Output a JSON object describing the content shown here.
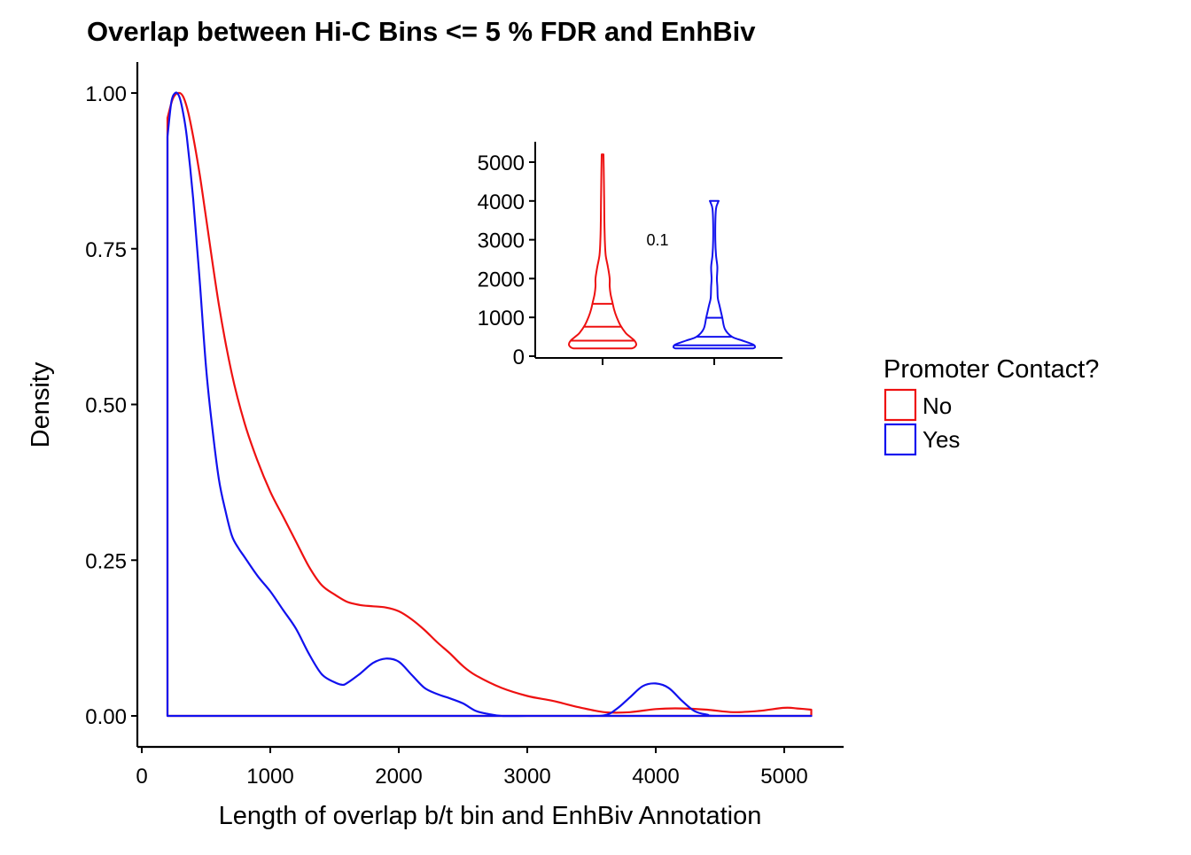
{
  "chart_data": [
    {
      "type": "density",
      "title": "Overlap between Hi-C Bins <= 5 % FDR and EnhBiv",
      "xlabel": "Length of overlap b/t bin and EnhBiv Annotation",
      "ylabel": "Density",
      "xlim": [
        -20,
        5450
      ],
      "ylim": [
        -0.05,
        1.05
      ],
      "xticks": [
        0,
        1000,
        2000,
        3000,
        4000,
        5000
      ],
      "xtick_labels": [
        "0",
        "1000",
        "2000",
        "3000",
        "4000",
        "5000"
      ],
      "yticks": [
        0,
        0.25,
        0.5,
        0.75,
        1.0
      ],
      "ytick_labels": [
        "0.00",
        "0.25",
        "0.50",
        "0.75",
        "1.00"
      ],
      "grid": false,
      "legend": {
        "title": "Promoter Contact?",
        "position": "right",
        "entries": [
          "No",
          "Yes"
        ]
      },
      "series": [
        {
          "name": "No",
          "color": "#ee1111",
          "x": [
            200,
            240,
            280,
            320,
            360,
            400,
            450,
            500,
            600,
            700,
            800,
            900,
            1000,
            1100,
            1200,
            1300,
            1400,
            1500,
            1600,
            1700,
            1800,
            1900,
            2000,
            2100,
            2200,
            2300,
            2400,
            2500,
            2600,
            2800,
            3000,
            3200,
            3400,
            3600,
            3800,
            4000,
            4200,
            4400,
            4600,
            4800,
            5000,
            5100,
            5210
          ],
          "y": [
            0.96,
            0.99,
            1.0,
            0.995,
            0.97,
            0.93,
            0.87,
            0.8,
            0.66,
            0.55,
            0.47,
            0.41,
            0.36,
            0.32,
            0.28,
            0.24,
            0.21,
            0.195,
            0.183,
            0.178,
            0.176,
            0.174,
            0.168,
            0.155,
            0.138,
            0.118,
            0.1,
            0.08,
            0.065,
            0.045,
            0.032,
            0.024,
            0.014,
            0.006,
            0.006,
            0.011,
            0.012,
            0.01,
            0.006,
            0.008,
            0.013,
            0.012,
            0.01
          ]
        },
        {
          "name": "Yes",
          "color": "#1111ee",
          "x": [
            200,
            230,
            260,
            290,
            320,
            350,
            400,
            450,
            500,
            550,
            600,
            650,
            700,
            750,
            800,
            900,
            1000,
            1100,
            1200,
            1300,
            1400,
            1500,
            1560,
            1600,
            1700,
            1800,
            1900,
            2000,
            2100,
            2200,
            2300,
            2400,
            2500,
            2600,
            2700,
            2800,
            3000,
            3200,
            3400,
            3600,
            3700,
            3800,
            3900,
            4000,
            4100,
            4200,
            4300,
            4400,
            4500,
            5210
          ],
          "y": [
            0.93,
            0.985,
            1.0,
            0.995,
            0.97,
            0.93,
            0.83,
            0.7,
            0.56,
            0.46,
            0.38,
            0.33,
            0.29,
            0.27,
            0.255,
            0.225,
            0.2,
            0.17,
            0.14,
            0.1,
            0.067,
            0.054,
            0.05,
            0.053,
            0.068,
            0.085,
            0.092,
            0.087,
            0.066,
            0.045,
            0.035,
            0.028,
            0.02,
            0.008,
            0.003,
            0.0,
            0.0,
            0.0,
            0.0,
            0.001,
            0.012,
            0.03,
            0.048,
            0.052,
            0.045,
            0.025,
            0.008,
            0.002,
            0.0,
            0.0
          ]
        }
      ]
    },
    {
      "type": "violin",
      "role": "inset",
      "categories": [
        "No",
        "Yes"
      ],
      "ylim": [
        0,
        5400
      ],
      "yticks": [
        0,
        1000,
        2000,
        3000,
        4000,
        5000
      ],
      "ytick_labels": [
        "0",
        "1000",
        "2000",
        "3000",
        "4000",
        "5000"
      ],
      "annotation": "0.1",
      "violins": [
        {
          "name": "No",
          "color": "#ee1111",
          "y": [
            200,
            230,
            300,
            400,
            500,
            600,
            800,
            1000,
            1200,
            1400,
            1600,
            1800,
            2000,
            2300,
            2600,
            3000,
            3500,
            4000,
            4500,
            5200
          ],
          "halfwidth": [
            0.33,
            0.36,
            0.38,
            0.36,
            0.31,
            0.26,
            0.2,
            0.16,
            0.13,
            0.11,
            0.09,
            0.08,
            0.08,
            0.06,
            0.035,
            0.025,
            0.02,
            0.018,
            0.015,
            0.01
          ],
          "quantiles": [
            400,
            760,
            1350
          ]
        },
        {
          "name": "Yes",
          "color": "#1111ee",
          "y": [
            200,
            230,
            300,
            400,
            500,
            700,
            1000,
            1300,
            1500,
            1800,
            2000,
            2300,
            2600,
            3000,
            3400,
            3800,
            3950,
            4000
          ],
          "halfwidth": [
            0.44,
            0.46,
            0.44,
            0.32,
            0.2,
            0.12,
            0.09,
            0.06,
            0.04,
            0.035,
            0.03,
            0.035,
            0.02,
            0.012,
            0.012,
            0.02,
            0.04,
            0.05
          ],
          "quantiles": [
            280,
            500,
            990
          ]
        }
      ]
    }
  ]
}
